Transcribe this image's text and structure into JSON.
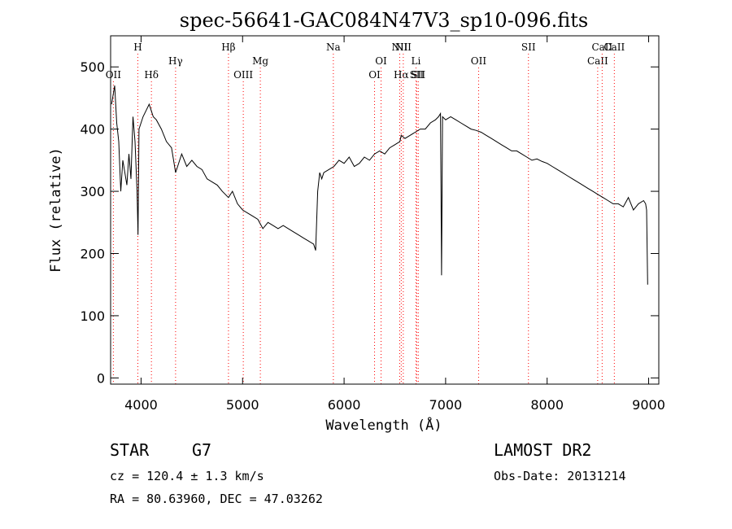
{
  "chart_data": {
    "type": "line",
    "title": "spec-56641-GAC084N47V3_sp10-096.fits",
    "xlabel": "Wavelength (Å)",
    "ylabel": "Flux (relative)",
    "xlim": [
      3700,
      9100
    ],
    "ylim": [
      -10,
      550
    ],
    "xticks": [
      "4000",
      "5000",
      "6000",
      "7000",
      "8000",
      "9000"
    ],
    "yticks": [
      "0",
      "100",
      "200",
      "300",
      "400",
      "500"
    ],
    "grid": false,
    "series": [
      {
        "x": [
          3710,
          3740,
          3760,
          3780,
          3800,
          3820,
          3840,
          3860,
          3880,
          3900,
          3920,
          3940,
          3960,
          3970,
          3980,
          4000,
          4020,
          4050,
          4080,
          4100,
          4120,
          4150,
          4200,
          4250,
          4300,
          4340,
          4400,
          4450,
          4500,
          4550,
          4600,
          4650,
          4700,
          4750,
          4800,
          4861,
          4900,
          4950,
          5000,
          5050,
          5100,
          5150,
          5200,
          5250,
          5300,
          5350,
          5400,
          5450,
          5500,
          5550,
          5600,
          5650,
          5700,
          5720,
          5740,
          5760,
          5780,
          5800,
          5850,
          5900,
          5950,
          6000,
          6050,
          6100,
          6150,
          6200,
          6250,
          6300,
          6350,
          6400,
          6450,
          6500,
          6550,
          6563,
          6600,
          6650,
          6700,
          6750,
          6800,
          6850,
          6900,
          6930,
          6950,
          6960,
          6970,
          7000,
          7050,
          7100,
          7150,
          7200,
          7250,
          7300,
          7350,
          7400,
          7450,
          7500,
          7550,
          7600,
          7650,
          7700,
          7750,
          7800,
          7850,
          7900,
          7950,
          8000,
          8050,
          8100,
          8150,
          8200,
          8250,
          8300,
          8350,
          8400,
          8450,
          8500,
          8550,
          8600,
          8650,
          8700,
          8750,
          8800,
          8850,
          8900,
          8950,
          8970,
          8980,
          8990
        ],
        "y": [
          440,
          470,
          410,
          380,
          300,
          350,
          330,
          310,
          360,
          320,
          420,
          380,
          300,
          230,
          400,
          410,
          420,
          430,
          440,
          430,
          420,
          415,
          400,
          380,
          370,
          330,
          360,
          340,
          350,
          340,
          335,
          320,
          315,
          310,
          300,
          290,
          300,
          280,
          270,
          265,
          260,
          255,
          240,
          250,
          245,
          240,
          245,
          240,
          235,
          230,
          225,
          220,
          215,
          205,
          300,
          330,
          320,
          330,
          335,
          340,
          350,
          345,
          355,
          340,
          345,
          355,
          350,
          360,
          365,
          360,
          370,
          375,
          380,
          390,
          385,
          390,
          395,
          400,
          400,
          410,
          415,
          420,
          425,
          165,
          420,
          415,
          420,
          415,
          410,
          405,
          400,
          398,
          395,
          390,
          385,
          380,
          375,
          370,
          365,
          365,
          360,
          355,
          350,
          352,
          348,
          345,
          340,
          335,
          330,
          325,
          320,
          315,
          310,
          305,
          300,
          295,
          290,
          285,
          280,
          280,
          275,
          290,
          270,
          280,
          285,
          280,
          270,
          150
        ]
      }
    ],
    "line_markers": [
      {
        "label": "OII",
        "wl": 3727,
        "row": "mid"
      },
      {
        "label": "H",
        "wl": 3968,
        "row": "top"
      },
      {
        "label": "Hδ",
        "wl": 4102,
        "row": "mid"
      },
      {
        "label": "Hγ",
        "wl": 4340,
        "row": "upper"
      },
      {
        "label": "Hβ",
        "wl": 4861,
        "row": "top"
      },
      {
        "label": "OIII",
        "wl": 5007,
        "row": "mid"
      },
      {
        "label": "Mg",
        "wl": 5175,
        "row": "upper"
      },
      {
        "label": "Na",
        "wl": 5894,
        "row": "top"
      },
      {
        "label": "OI",
        "wl": 6300,
        "row": "mid"
      },
      {
        "label": "OI",
        "wl": 6364,
        "row": "upper"
      },
      {
        "label": "NII",
        "wl": 6548,
        "row": "top"
      },
      {
        "label": "Hα",
        "wl": 6563,
        "row": "mid"
      },
      {
        "label": "NII",
        "wl": 6583,
        "row": "top"
      },
      {
        "label": "Li",
        "wl": 6708,
        "row": "upper"
      },
      {
        "label": "SII",
        "wl": 6716,
        "row": "mid"
      },
      {
        "label": "SII",
        "wl": 6731,
        "row": "mid"
      },
      {
        "label": "OII",
        "wl": 7325,
        "row": "upper"
      },
      {
        "label": "SII",
        "wl": 7816,
        "row": "top"
      },
      {
        "label": "CaII",
        "wl": 8498,
        "row": "upper"
      },
      {
        "label": "CaII",
        "wl": 8542,
        "row": "top"
      },
      {
        "label": "CaII",
        "wl": 8662,
        "row": "top"
      }
    ],
    "colors": {
      "spectrum": "#000000",
      "marker": "#ff0000",
      "axis": "#000000"
    }
  },
  "info": {
    "object_type": "STAR",
    "subclass": "G7",
    "survey": "LAMOST DR2",
    "redshift": "cz = 120.4 ± 1.3 km/s",
    "obs_date": "Obs-Date: 20131214",
    "coords": "RA =  80.63960, DEC =  47.03262"
  }
}
